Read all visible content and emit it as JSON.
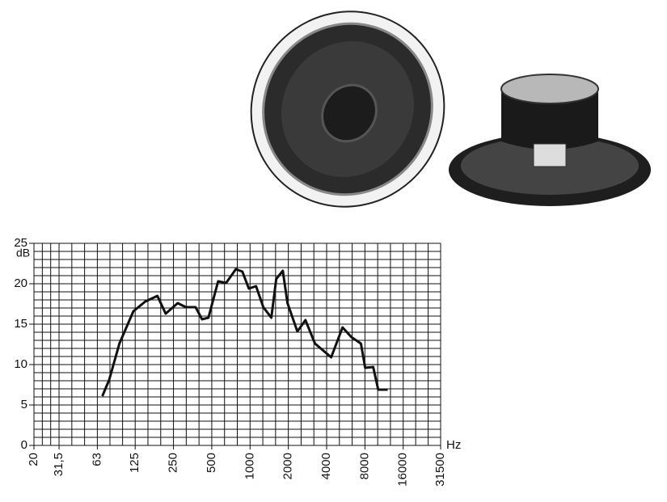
{
  "chart_data": {
    "type": "line",
    "y_label": "dB",
    "x_label": "Hz",
    "log_x": true,
    "grid": true,
    "xlim": [
      20,
      31500
    ],
    "ylim": [
      0,
      25
    ],
    "xticks": [
      20,
      {
        "value": 31.5,
        "label": "31,5"
      },
      63,
      125,
      250,
      500,
      1000,
      2000,
      4000,
      8000,
      16000,
      31500
    ],
    "yticks": [
      0,
      5,
      10,
      15,
      20,
      25
    ],
    "series": [
      {
        "color": "#111111",
        "x": [
          69,
          78,
          94,
          121,
          150,
          187,
          217,
          270,
          313,
          373,
          419,
          471,
          561,
          649,
          773,
          870,
          978,
          1114,
          1272,
          1470,
          1608,
          1810,
          1970,
          2355,
          2725,
          3240,
          4340,
          5340,
          6260,
          7440,
          8040,
          9300,
          10170,
          12100
        ],
        "values": [
          6.1,
          8.1,
          12.6,
          16.6,
          17.8,
          18.5,
          16.3,
          17.6,
          17.1,
          17.1,
          15.6,
          15.8,
          20.3,
          20.1,
          21.8,
          21.5,
          19.4,
          19.7,
          17.1,
          15.8,
          20.6,
          21.6,
          17.6,
          14.1,
          15.5,
          12.6,
          10.9,
          14.6,
          13.4,
          12.6,
          9.6,
          9.7,
          6.9,
          6.9
        ]
      }
    ]
  }
}
